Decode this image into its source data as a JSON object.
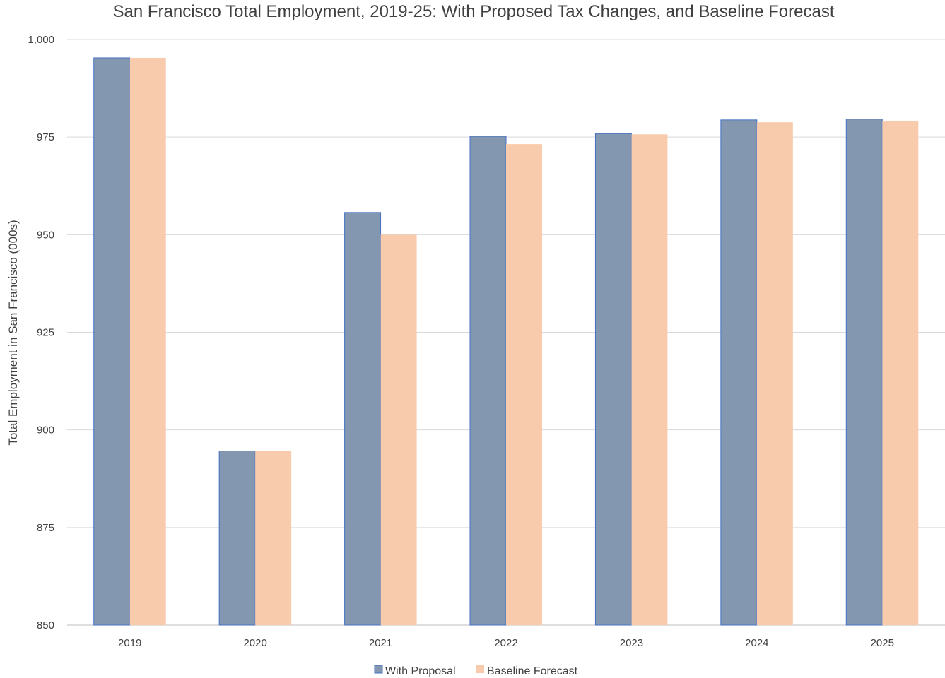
{
  "chart_data": {
    "type": "bar",
    "title": "San Francisco Total Employment, 2019-25: With Proposed Tax Changes, and Baseline Forecast",
    "xlabel": "",
    "ylabel": "Total Employment in San Francisco (000s)",
    "categories": [
      "2019",
      "2020",
      "2021",
      "2022",
      "2023",
      "2024",
      "2025"
    ],
    "series": [
      {
        "name": "With Proposal",
        "values": [
          995.3,
          894.6,
          955.7,
          975.2,
          975.9,
          979.4,
          979.6
        ],
        "color": "#8497b0",
        "edge": "#4472c4"
      },
      {
        "name": "Baseline Forecast",
        "values": [
          995.3,
          894.6,
          950.0,
          973.2,
          975.7,
          978.8,
          979.2
        ],
        "color": "#f8cbad",
        "edge": "#f8cbad"
      }
    ],
    "ylim": [
      850,
      1000
    ],
    "yticks": [
      850,
      875,
      900,
      925,
      950,
      975,
      1000
    ],
    "ytick_labels": [
      "850",
      "875",
      "900",
      "925",
      "950",
      "975",
      "1,000"
    ],
    "grid": true,
    "legend": "bottom-center"
  }
}
